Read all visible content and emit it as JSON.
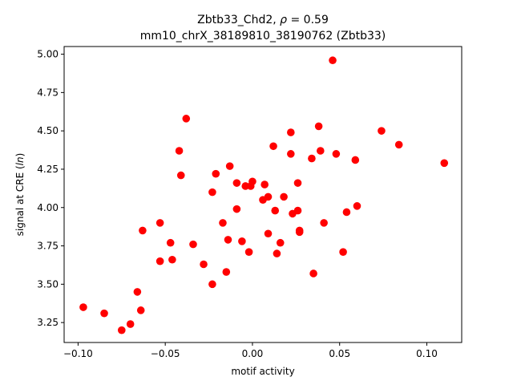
{
  "chart_data": {
    "type": "scatter",
    "title_line1_prefix": "Zbtb33_Chd2, ",
    "title_line1_rho": "ρ",
    "title_line1_suffix": " = 0.59",
    "title_line2": "mm10_chrX_38189810_38190762 (Zbtb33)",
    "xlabel": "motif activity",
    "ylabel_prefix": "signal at CRE (",
    "ylabel_italic": "ln",
    "ylabel_suffix": ")",
    "xlim": [
      -0.108,
      0.12
    ],
    "ylim": [
      3.12,
      5.05
    ],
    "xticks": [
      -0.1,
      -0.05,
      0.0,
      0.05,
      0.1
    ],
    "xtick_labels": [
      "−0.10",
      "−0.05",
      "0.00",
      "0.05",
      "0.10"
    ],
    "yticks": [
      3.25,
      3.5,
      3.75,
      4.0,
      4.25,
      4.5,
      4.75,
      5.0
    ],
    "ytick_labels": [
      "3.25",
      "3.50",
      "3.75",
      "4.00",
      "4.25",
      "4.50",
      "4.75",
      "5.00"
    ],
    "marker_color": "#ff0000",
    "points": [
      [
        -0.097,
        3.35
      ],
      [
        -0.085,
        3.31
      ],
      [
        -0.075,
        3.2
      ],
      [
        -0.07,
        3.24
      ],
      [
        -0.066,
        3.45
      ],
      [
        -0.064,
        3.33
      ],
      [
        -0.063,
        3.85
      ],
      [
        -0.053,
        3.9
      ],
      [
        -0.053,
        3.65
      ],
      [
        -0.047,
        3.77
      ],
      [
        -0.046,
        3.66
      ],
      [
        -0.042,
        4.37
      ],
      [
        -0.041,
        4.21
      ],
      [
        -0.038,
        4.58
      ],
      [
        -0.034,
        3.76
      ],
      [
        -0.028,
        3.63
      ],
      [
        -0.023,
        4.1
      ],
      [
        -0.023,
        3.5
      ],
      [
        -0.021,
        4.22
      ],
      [
        -0.017,
        3.9
      ],
      [
        -0.015,
        3.58
      ],
      [
        -0.014,
        3.79
      ],
      [
        -0.013,
        4.27
      ],
      [
        -0.009,
        3.99
      ],
      [
        -0.009,
        4.16
      ],
      [
        -0.006,
        3.78
      ],
      [
        -0.004,
        4.14
      ],
      [
        -0.002,
        3.71
      ],
      [
        -0.001,
        4.14
      ],
      [
        0.0,
        4.17
      ],
      [
        0.006,
        4.05
      ],
      [
        0.007,
        4.15
      ],
      [
        0.009,
        4.07
      ],
      [
        0.009,
        3.83
      ],
      [
        0.012,
        4.4
      ],
      [
        0.013,
        3.98
      ],
      [
        0.014,
        3.7
      ],
      [
        0.016,
        3.77
      ],
      [
        0.018,
        4.07
      ],
      [
        0.022,
        4.35
      ],
      [
        0.022,
        4.49
      ],
      [
        0.023,
        3.96
      ],
      [
        0.026,
        3.98
      ],
      [
        0.026,
        4.16
      ],
      [
        0.027,
        3.85
      ],
      [
        0.027,
        3.84
      ],
      [
        0.034,
        4.32
      ],
      [
        0.035,
        3.57
      ],
      [
        0.038,
        4.53
      ],
      [
        0.039,
        4.37
      ],
      [
        0.041,
        3.9
      ],
      [
        0.046,
        4.96
      ],
      [
        0.048,
        4.35
      ],
      [
        0.052,
        3.71
      ],
      [
        0.054,
        3.97
      ],
      [
        0.059,
        4.31
      ],
      [
        0.06,
        4.01
      ],
      [
        0.074,
        4.5
      ],
      [
        0.084,
        4.41
      ],
      [
        0.11,
        4.29
      ]
    ]
  }
}
